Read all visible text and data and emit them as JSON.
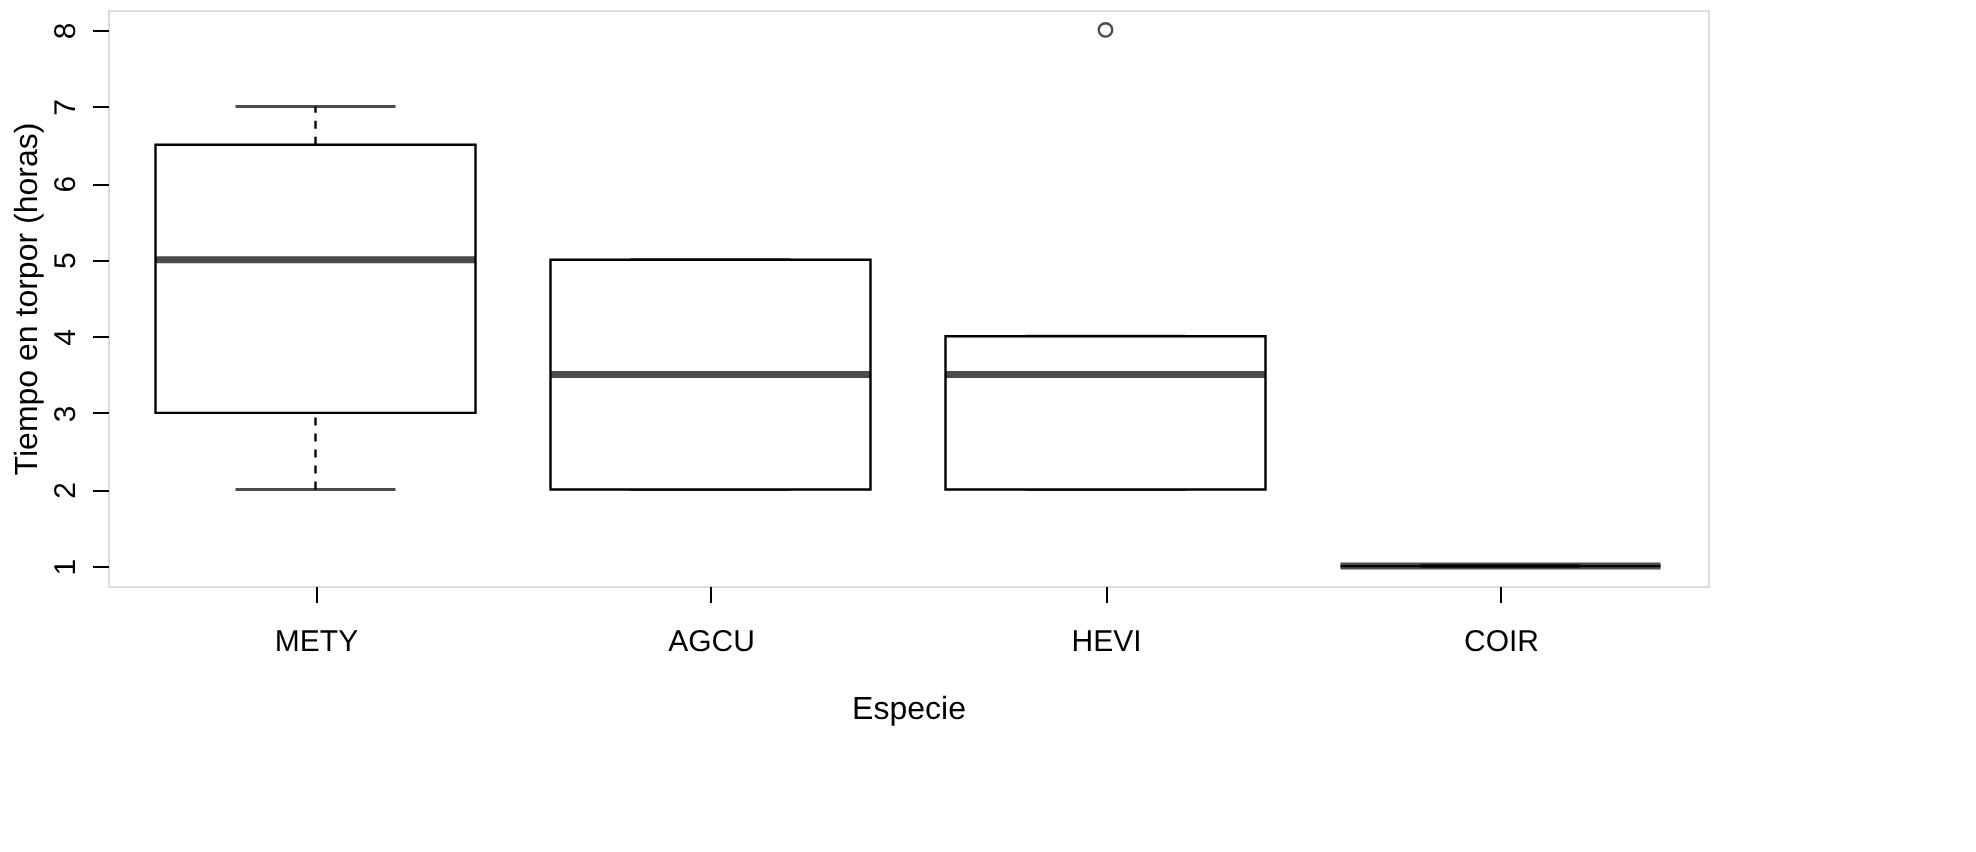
{
  "chart_data": {
    "type": "box",
    "xlabel": "Especie",
    "ylabel": "Tiempo en torpor (horas)",
    "categories": [
      "METY",
      "AGCU",
      "HEVI",
      "COIR"
    ],
    "boxes": [
      {
        "low": 2,
        "q1": 3,
        "median": 5,
        "q3": 6.5,
        "high": 7
      },
      {
        "low": 2,
        "q1": 2,
        "median": 3.5,
        "q3": 5,
        "high": 5
      },
      {
        "low": 2,
        "q1": 2,
        "median": 3.5,
        "q3": 4,
        "high": 4,
        "outliers": [
          8
        ]
      },
      {
        "low": 1,
        "q1": 1,
        "median": 1,
        "q3": 1,
        "high": 1
      }
    ],
    "ylim": [
      0.74,
      8.26
    ],
    "yticks": [
      1,
      2,
      3,
      4,
      5,
      6,
      7,
      8
    ],
    "grid": false
  }
}
